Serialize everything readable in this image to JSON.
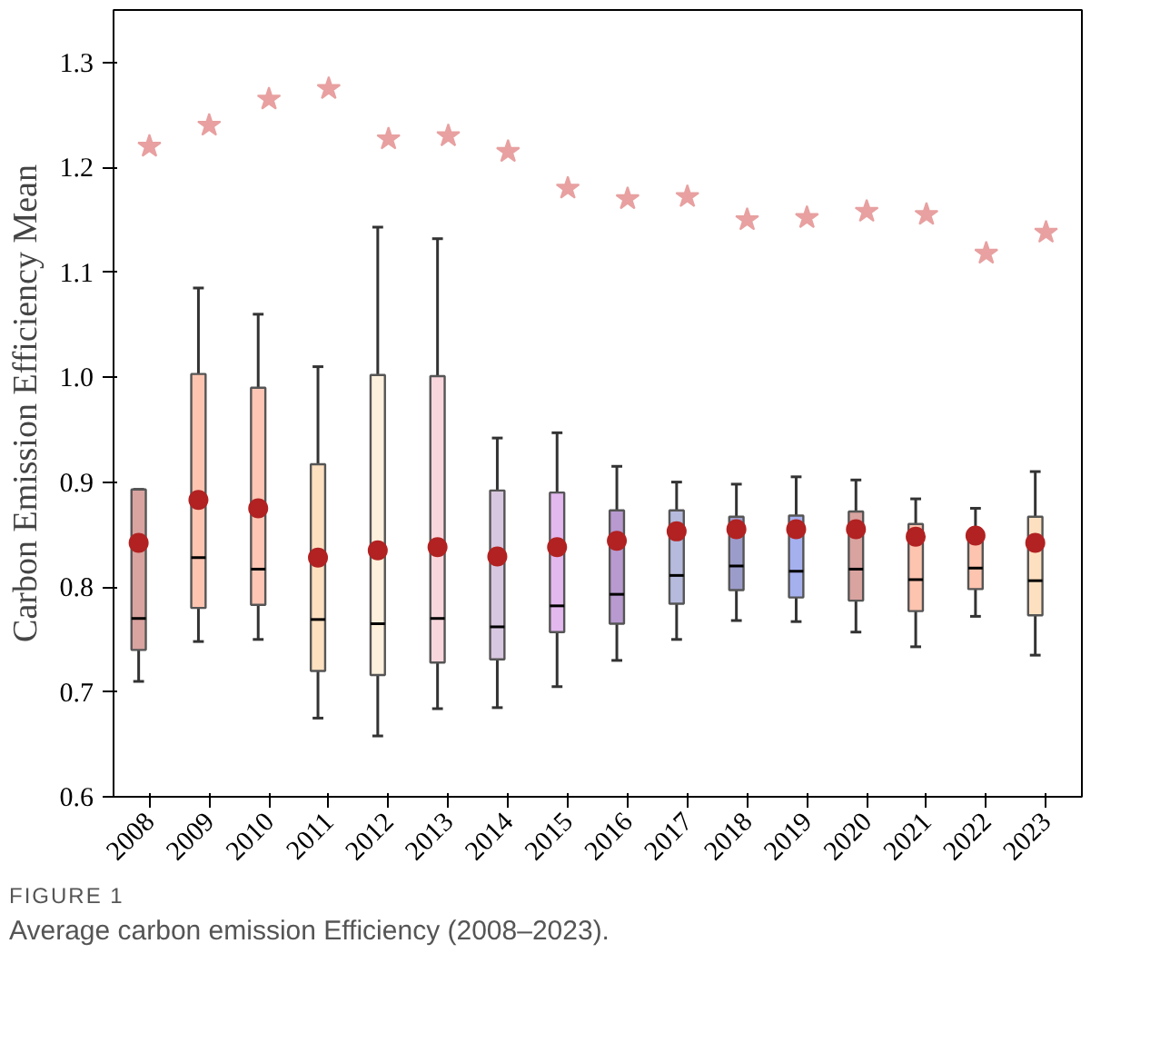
{
  "chart_data": {
    "type": "box",
    "ylabel": "Carbon Emission Efficiency Mean",
    "categories": [
      "2008",
      "2009",
      "2010",
      "2011",
      "2012",
      "2013",
      "2014",
      "2015",
      "2016",
      "2017",
      "2018",
      "2019",
      "2020",
      "2021",
      "2022",
      "2023"
    ],
    "ylim": [
      0.6,
      1.35
    ],
    "yticks": [
      0.6,
      0.7,
      0.8,
      0.9,
      {
        "value": 1.0,
        "label": "1.0"
      },
      1.1,
      1.2,
      1.3
    ],
    "grid": false,
    "colors": [
      "#d9a3a0",
      "#fdc4b0",
      "#fdc6b5",
      "#fde0c0",
      "#fdf0dc",
      "#f9d6dc",
      "#d8c7e0",
      "#e3b8ef",
      "#b89ad0",
      "#b6bbdd",
      "#9c9ccb",
      "#a5b0ef",
      "#d9a3a0",
      "#fdc4b0",
      "#fdc4b0",
      "#fde0c0"
    ],
    "boxes": [
      {
        "low": 0.71,
        "q1": 0.74,
        "median": 0.77,
        "q3": 0.893,
        "high": 0.893,
        "mean": 0.842
      },
      {
        "low": 0.748,
        "q1": 0.78,
        "median": 0.828,
        "q3": 1.003,
        "high": 1.085,
        "mean": 0.883
      },
      {
        "low": 0.75,
        "q1": 0.783,
        "median": 0.817,
        "q3": 0.99,
        "high": 1.06,
        "mean": 0.875
      },
      {
        "low": 0.675,
        "q1": 0.72,
        "median": 0.769,
        "q3": 0.917,
        "high": 1.01,
        "mean": 0.828
      },
      {
        "low": 0.658,
        "q1": 0.716,
        "median": 0.765,
        "q3": 1.002,
        "high": 1.143,
        "mean": 0.835
      },
      {
        "low": 0.684,
        "q1": 0.728,
        "median": 0.77,
        "q3": 1.001,
        "high": 1.132,
        "mean": 0.838
      },
      {
        "low": 0.685,
        "q1": 0.731,
        "median": 0.762,
        "q3": 0.892,
        "high": 0.942,
        "mean": 0.829
      },
      {
        "low": 0.705,
        "q1": 0.757,
        "median": 0.782,
        "q3": 0.89,
        "high": 0.947,
        "mean": 0.838
      },
      {
        "low": 0.73,
        "q1": 0.765,
        "median": 0.793,
        "q3": 0.873,
        "high": 0.915,
        "mean": 0.844
      },
      {
        "low": 0.75,
        "q1": 0.784,
        "median": 0.811,
        "q3": 0.873,
        "high": 0.9,
        "mean": 0.853
      },
      {
        "low": 0.768,
        "q1": 0.797,
        "median": 0.82,
        "q3": 0.867,
        "high": 0.898,
        "mean": 0.855
      },
      {
        "low": 0.767,
        "q1": 0.79,
        "median": 0.815,
        "q3": 0.868,
        "high": 0.905,
        "mean": 0.855
      },
      {
        "low": 0.757,
        "q1": 0.787,
        "median": 0.817,
        "q3": 0.872,
        "high": 0.902,
        "mean": 0.855
      },
      {
        "low": 0.743,
        "q1": 0.777,
        "median": 0.807,
        "q3": 0.86,
        "high": 0.884,
        "mean": 0.848
      },
      {
        "low": 0.772,
        "q1": 0.798,
        "median": 0.818,
        "q3": 0.85,
        "high": 0.875,
        "mean": 0.849
      },
      {
        "low": 0.735,
        "q1": 0.773,
        "median": 0.806,
        "q3": 0.867,
        "high": 0.91,
        "mean": 0.842
      }
    ],
    "series": [
      {
        "type": "scatter",
        "marker": "star",
        "color": "#e8a0a0",
        "values": [
          1.22,
          1.24,
          1.265,
          1.275,
          1.227,
          1.23,
          1.215,
          1.18,
          1.17,
          1.172,
          1.15,
          1.152,
          1.158,
          1.155,
          1.118,
          1.138
        ]
      }
    ],
    "annotations": [
      "FIGURE 1",
      "Average carbon emission Efficiency (2008–2023)."
    ]
  }
}
